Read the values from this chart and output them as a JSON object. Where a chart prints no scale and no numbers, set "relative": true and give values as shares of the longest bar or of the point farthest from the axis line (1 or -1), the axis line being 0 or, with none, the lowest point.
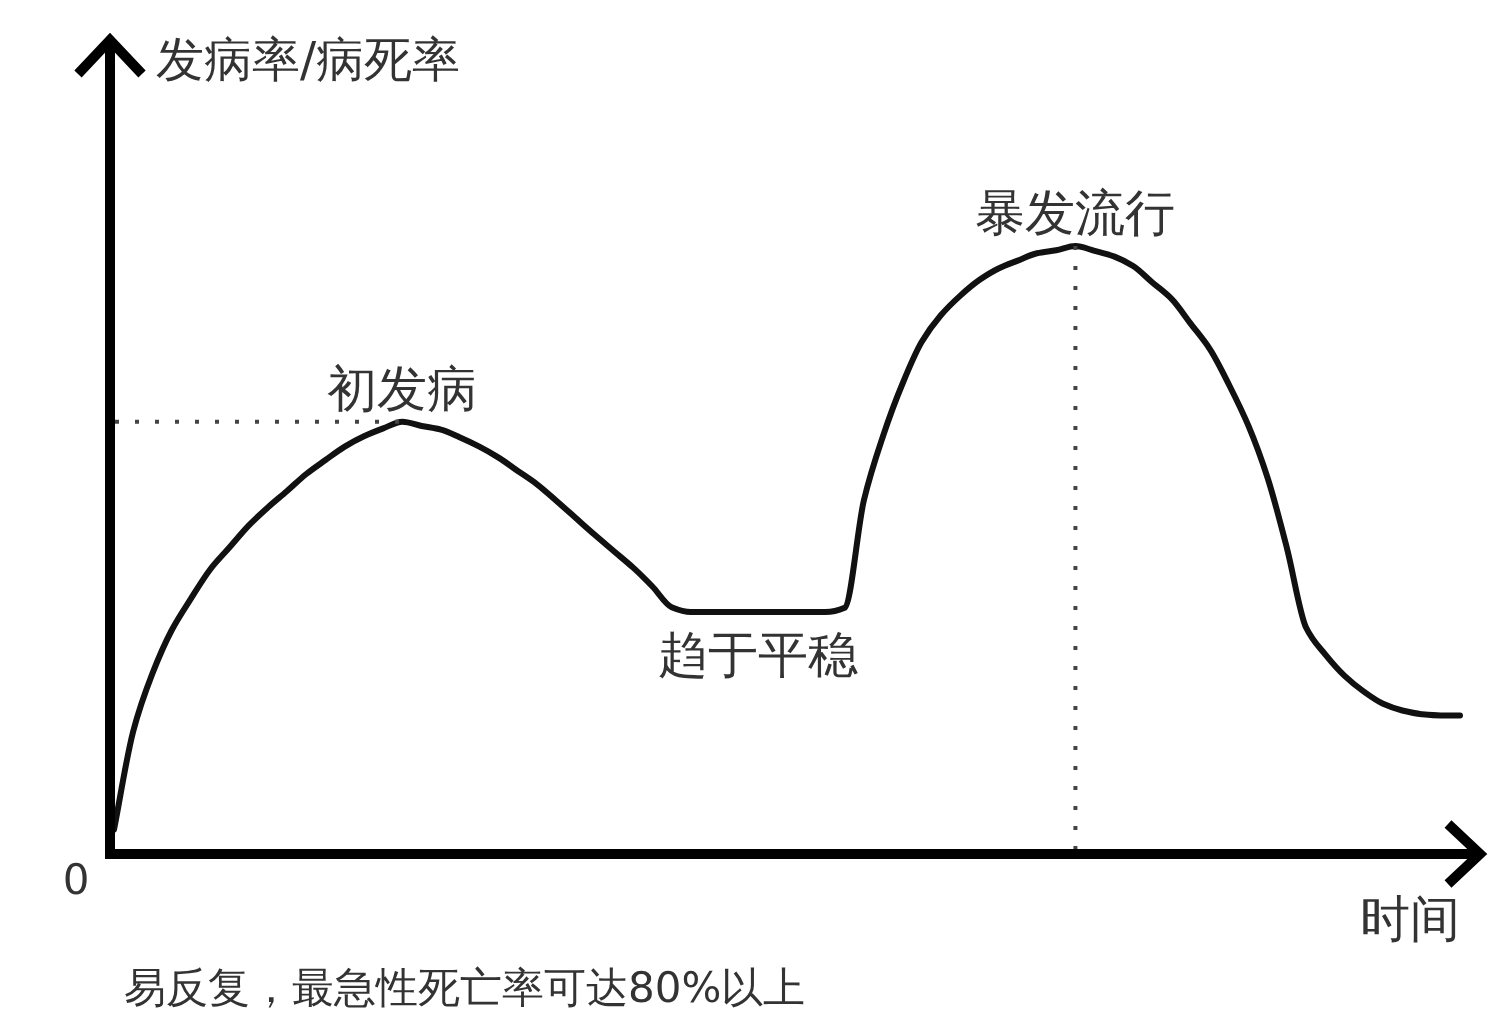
{
  "chart_data": {
    "type": "line",
    "relative": true,
    "ylabel": "发病率/病死率",
    "xlabel": "时间",
    "categories": [
      null,
      null,
      null,
      null,
      null,
      null,
      null,
      null,
      null,
      null,
      null,
      null,
      null,
      null,
      null,
      null,
      null,
      null,
      null,
      null,
      null,
      null,
      null,
      null,
      null,
      null,
      null,
      null,
      null,
      null,
      null,
      null,
      null,
      null,
      null,
      null,
      null,
      null,
      null,
      null,
      null,
      null,
      null,
      null,
      null,
      null,
      null,
      null,
      null,
      null,
      null,
      null,
      null,
      null,
      null,
      null,
      null,
      null,
      null,
      null,
      null,
      null,
      null,
      null,
      null,
      null,
      null,
      null,
      null,
      null,
      null
    ],
    "series": [
      {
        "color": "#111111",
        "values": [
          0.04,
          0.202,
          0.297,
          0.368,
          0.42,
          0.468,
          0.504,
          0.54,
          0.57,
          0.597,
          0.625,
          0.648,
          0.67,
          0.687,
          0.7,
          0.711,
          0.704,
          0.698,
          0.685,
          0.67,
          0.652,
          0.63,
          0.608,
          0.581,
          0.553,
          0.525,
          0.498,
          0.471,
          0.44,
          0.406,
          0.398,
          0.398,
          0.398,
          0.398,
          0.398,
          0.398,
          0.398,
          0.398,
          0.405,
          0.582,
          0.688,
          0.773,
          0.842,
          0.886,
          0.918,
          0.944,
          0.963,
          0.976,
          0.988,
          0.993,
          1,
          0.992,
          0.983,
          0.967,
          0.94,
          0.913,
          0.872,
          0.83,
          0.771,
          0.704,
          0.618,
          0.503,
          0.372,
          0.328,
          0.293,
          0.267,
          0.247,
          0.236,
          0.23,
          0.228,
          0.228
        ]
      }
    ],
    "ref_lines": [
      {
        "axis": "y",
        "value": 0.711,
        "color": "#444444",
        "line_style": "dotted"
      }
    ],
    "annotations": [
      "0",
      {
        "text": "初发病",
        "y": 0.711
      },
      {
        "text": "趋于平稳",
        "y": 0.398
      },
      {
        "text": "暴发流行",
        "y": 1
      },
      "易反复，最急性死亡率可达80%以上"
    ]
  }
}
